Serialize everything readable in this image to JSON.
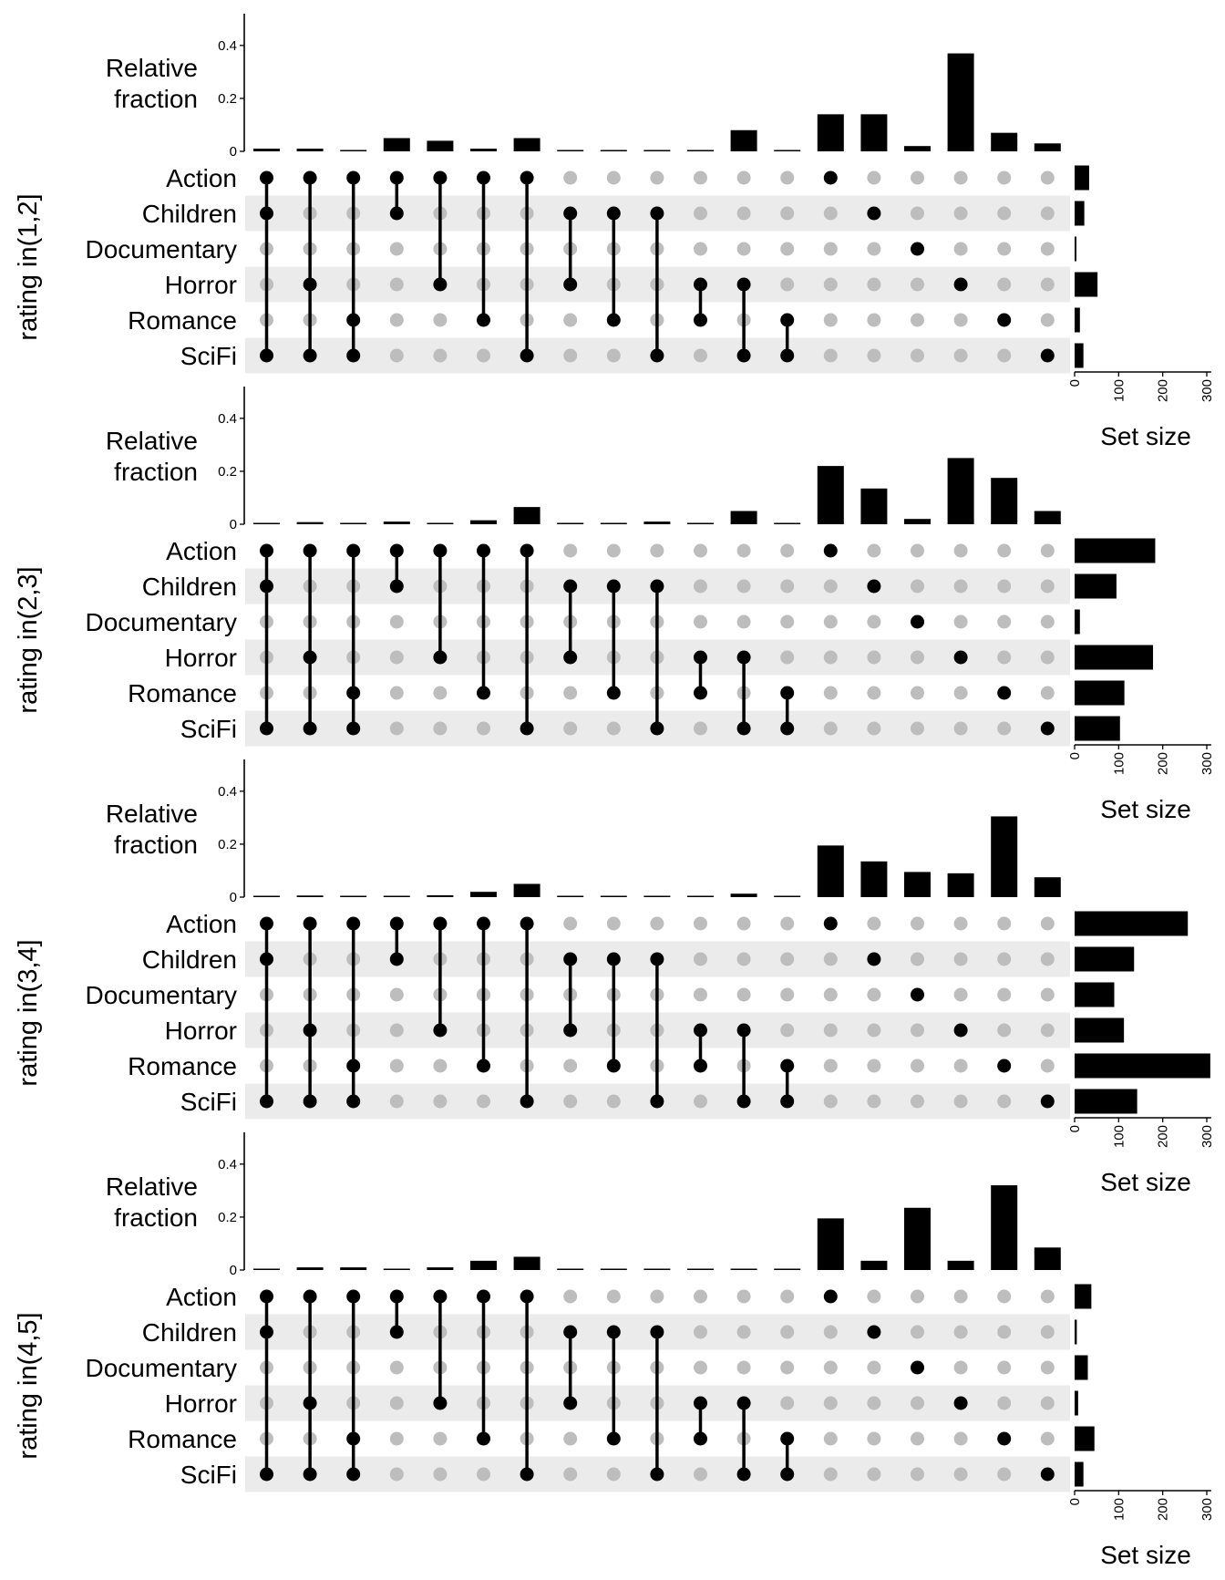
{
  "chart_data": {
    "type": "upset",
    "sets": [
      "Action",
      "Children",
      "Documentary",
      "Horror",
      "Romance",
      "SciFi"
    ],
    "bar_axis_label": "Relative fraction",
    "bar_axis_ticks": [
      0,
      0.2,
      0.4
    ],
    "bar_axis_tick_labels": [
      "0",
      "0.2",
      "0.4"
    ],
    "bar_ylim": [
      0,
      0.52
    ],
    "set_size_label": "Set size",
    "set_size_ticks": [
      0,
      100,
      200,
      300
    ],
    "set_size_tick_labels": [
      "0",
      "100",
      "200",
      "300"
    ],
    "set_size_xlim": [
      0,
      310
    ],
    "intersections": [
      [
        "Action",
        "Children",
        "SciFi"
      ],
      [
        "Action",
        "Horror",
        "SciFi"
      ],
      [
        "Action",
        "Romance",
        "SciFi"
      ],
      [
        "Action",
        "Children"
      ],
      [
        "Action",
        "Horror"
      ],
      [
        "Action",
        "Romance"
      ],
      [
        "Action",
        "SciFi"
      ],
      [
        "Children",
        "Horror"
      ],
      [
        "Children",
        "Romance"
      ],
      [
        "Children",
        "SciFi"
      ],
      [
        "Horror",
        "Romance"
      ],
      [
        "Horror",
        "SciFi"
      ],
      [
        "Romance",
        "SciFi"
      ],
      [
        "Action"
      ],
      [
        "Children"
      ],
      [
        "Documentary"
      ],
      [
        "Horror"
      ],
      [
        "Romance"
      ],
      [
        "SciFi"
      ]
    ],
    "panels": [
      {
        "label": "rating in(1,2]",
        "fractions": [
          0.01,
          0.01,
          0.003,
          0.05,
          0.04,
          0.01,
          0.05,
          0.002,
          0.002,
          0.002,
          0.002,
          0.08,
          0.003,
          0.14,
          0.14,
          0.02,
          0.37,
          0.07,
          0.03
        ],
        "set_sizes": [
          33,
          22,
          3,
          52,
          12,
          20
        ]
      },
      {
        "label": "rating in(2,3]",
        "fractions": [
          0.003,
          0.008,
          0.003,
          0.01,
          0.005,
          0.015,
          0.065,
          0.002,
          0.005,
          0.01,
          0.003,
          0.05,
          0.005,
          0.22,
          0.135,
          0.02,
          0.25,
          0.175,
          0.05
        ],
        "set_sizes": [
          183,
          95,
          12,
          178,
          113,
          103
        ]
      },
      {
        "label": "rating in(3,4]",
        "fractions": [
          0.002,
          0.006,
          0.003,
          0.002,
          0.007,
          0.02,
          0.05,
          0.003,
          0.004,
          0.005,
          0.004,
          0.013,
          0.005,
          0.195,
          0.135,
          0.095,
          0.09,
          0.305,
          0.075
        ],
        "set_sizes": [
          257,
          135,
          90,
          112,
          308,
          142
        ]
      },
      {
        "label": "rating in(4,5]",
        "fractions": [
          0.002,
          0.01,
          0.01,
          0.003,
          0.01,
          0.035,
          0.05,
          0.002,
          0.003,
          0.002,
          0.002,
          0.002,
          0.002,
          0.195,
          0.035,
          0.235,
          0.035,
          0.32,
          0.085
        ],
        "set_sizes": [
          38,
          5,
          30,
          8,
          45,
          20
        ]
      }
    ]
  }
}
